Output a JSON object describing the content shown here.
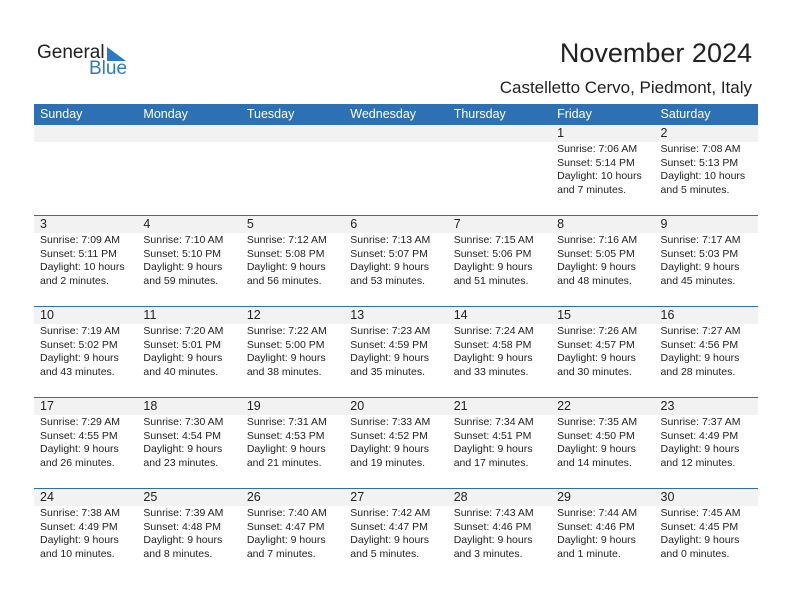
{
  "logo": {
    "general": "General",
    "blue": "Blue"
  },
  "title": "November 2024",
  "location": "Castelletto Cervo, Piedmont, Italy",
  "colors": {
    "accent": "#2e70b4",
    "day_band": "#f2f2f2"
  },
  "weekdays": [
    "Sunday",
    "Monday",
    "Tuesday",
    "Wednesday",
    "Thursday",
    "Friday",
    "Saturday"
  ],
  "leading_blank_days": 5,
  "days": [
    {
      "d": "1",
      "sr": "Sunrise: 7:06 AM",
      "ss": "Sunset: 5:14 PM",
      "dl": "Daylight: 10 hours",
      "dm": "and 7 minutes."
    },
    {
      "d": "2",
      "sr": "Sunrise: 7:08 AM",
      "ss": "Sunset: 5:13 PM",
      "dl": "Daylight: 10 hours",
      "dm": "and 5 minutes."
    },
    {
      "d": "3",
      "sr": "Sunrise: 7:09 AM",
      "ss": "Sunset: 5:11 PM",
      "dl": "Daylight: 10 hours",
      "dm": "and 2 minutes."
    },
    {
      "d": "4",
      "sr": "Sunrise: 7:10 AM",
      "ss": "Sunset: 5:10 PM",
      "dl": "Daylight: 9 hours",
      "dm": "and 59 minutes."
    },
    {
      "d": "5",
      "sr": "Sunrise: 7:12 AM",
      "ss": "Sunset: 5:08 PM",
      "dl": "Daylight: 9 hours",
      "dm": "and 56 minutes."
    },
    {
      "d": "6",
      "sr": "Sunrise: 7:13 AM",
      "ss": "Sunset: 5:07 PM",
      "dl": "Daylight: 9 hours",
      "dm": "and 53 minutes."
    },
    {
      "d": "7",
      "sr": "Sunrise: 7:15 AM",
      "ss": "Sunset: 5:06 PM",
      "dl": "Daylight: 9 hours",
      "dm": "and 51 minutes."
    },
    {
      "d": "8",
      "sr": "Sunrise: 7:16 AM",
      "ss": "Sunset: 5:05 PM",
      "dl": "Daylight: 9 hours",
      "dm": "and 48 minutes."
    },
    {
      "d": "9",
      "sr": "Sunrise: 7:17 AM",
      "ss": "Sunset: 5:03 PM",
      "dl": "Daylight: 9 hours",
      "dm": "and 45 minutes."
    },
    {
      "d": "10",
      "sr": "Sunrise: 7:19 AM",
      "ss": "Sunset: 5:02 PM",
      "dl": "Daylight: 9 hours",
      "dm": "and 43 minutes."
    },
    {
      "d": "11",
      "sr": "Sunrise: 7:20 AM",
      "ss": "Sunset: 5:01 PM",
      "dl": "Daylight: 9 hours",
      "dm": "and 40 minutes."
    },
    {
      "d": "12",
      "sr": "Sunrise: 7:22 AM",
      "ss": "Sunset: 5:00 PM",
      "dl": "Daylight: 9 hours",
      "dm": "and 38 minutes."
    },
    {
      "d": "13",
      "sr": "Sunrise: 7:23 AM",
      "ss": "Sunset: 4:59 PM",
      "dl": "Daylight: 9 hours",
      "dm": "and 35 minutes."
    },
    {
      "d": "14",
      "sr": "Sunrise: 7:24 AM",
      "ss": "Sunset: 4:58 PM",
      "dl": "Daylight: 9 hours",
      "dm": "and 33 minutes."
    },
    {
      "d": "15",
      "sr": "Sunrise: 7:26 AM",
      "ss": "Sunset: 4:57 PM",
      "dl": "Daylight: 9 hours",
      "dm": "and 30 minutes."
    },
    {
      "d": "16",
      "sr": "Sunrise: 7:27 AM",
      "ss": "Sunset: 4:56 PM",
      "dl": "Daylight: 9 hours",
      "dm": "and 28 minutes."
    },
    {
      "d": "17",
      "sr": "Sunrise: 7:29 AM",
      "ss": "Sunset: 4:55 PM",
      "dl": "Daylight: 9 hours",
      "dm": "and 26 minutes."
    },
    {
      "d": "18",
      "sr": "Sunrise: 7:30 AM",
      "ss": "Sunset: 4:54 PM",
      "dl": "Daylight: 9 hours",
      "dm": "and 23 minutes."
    },
    {
      "d": "19",
      "sr": "Sunrise: 7:31 AM",
      "ss": "Sunset: 4:53 PM",
      "dl": "Daylight: 9 hours",
      "dm": "and 21 minutes."
    },
    {
      "d": "20",
      "sr": "Sunrise: 7:33 AM",
      "ss": "Sunset: 4:52 PM",
      "dl": "Daylight: 9 hours",
      "dm": "and 19 minutes."
    },
    {
      "d": "21",
      "sr": "Sunrise: 7:34 AM",
      "ss": "Sunset: 4:51 PM",
      "dl": "Daylight: 9 hours",
      "dm": "and 17 minutes."
    },
    {
      "d": "22",
      "sr": "Sunrise: 7:35 AM",
      "ss": "Sunset: 4:50 PM",
      "dl": "Daylight: 9 hours",
      "dm": "and 14 minutes."
    },
    {
      "d": "23",
      "sr": "Sunrise: 7:37 AM",
      "ss": "Sunset: 4:49 PM",
      "dl": "Daylight: 9 hours",
      "dm": "and 12 minutes."
    },
    {
      "d": "24",
      "sr": "Sunrise: 7:38 AM",
      "ss": "Sunset: 4:49 PM",
      "dl": "Daylight: 9 hours",
      "dm": "and 10 minutes."
    },
    {
      "d": "25",
      "sr": "Sunrise: 7:39 AM",
      "ss": "Sunset: 4:48 PM",
      "dl": "Daylight: 9 hours",
      "dm": "and 8 minutes."
    },
    {
      "d": "26",
      "sr": "Sunrise: 7:40 AM",
      "ss": "Sunset: 4:47 PM",
      "dl": "Daylight: 9 hours",
      "dm": "and 7 minutes."
    },
    {
      "d": "27",
      "sr": "Sunrise: 7:42 AM",
      "ss": "Sunset: 4:47 PM",
      "dl": "Daylight: 9 hours",
      "dm": "and 5 minutes."
    },
    {
      "d": "28",
      "sr": "Sunrise: 7:43 AM",
      "ss": "Sunset: 4:46 PM",
      "dl": "Daylight: 9 hours",
      "dm": "and 3 minutes."
    },
    {
      "d": "29",
      "sr": "Sunrise: 7:44 AM",
      "ss": "Sunset: 4:46 PM",
      "dl": "Daylight: 9 hours",
      "dm": "and 1 minute."
    },
    {
      "d": "30",
      "sr": "Sunrise: 7:45 AM",
      "ss": "Sunset: 4:45 PM",
      "dl": "Daylight: 9 hours",
      "dm": "and 0 minutes."
    }
  ]
}
